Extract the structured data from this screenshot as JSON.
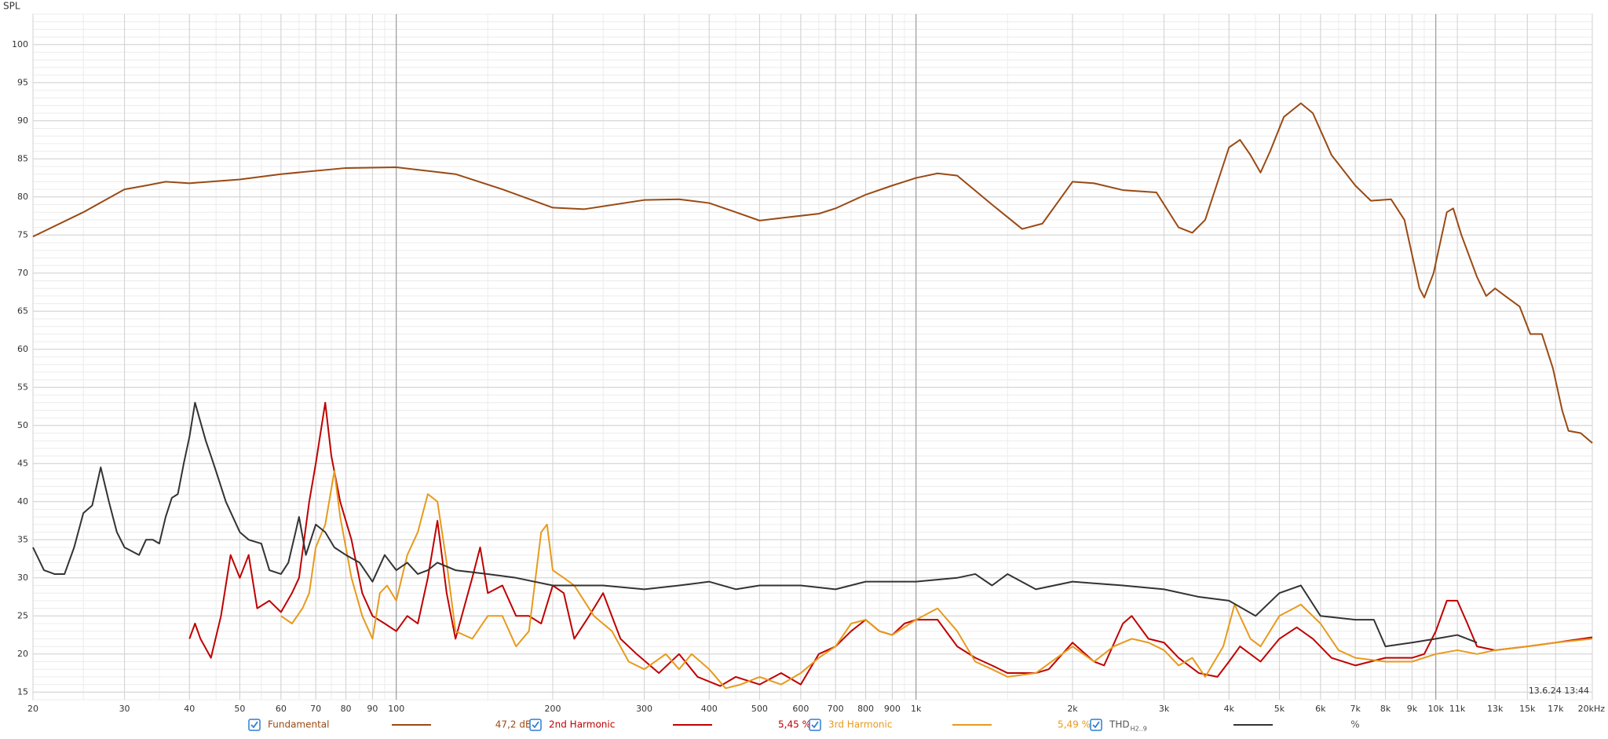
{
  "chart_data": {
    "type": "line",
    "y_label": "SPL",
    "timestamp": "13.6.24 13:44",
    "log_x": true,
    "grid": true,
    "xlim": [
      20,
      20000
    ],
    "ylim": [
      14,
      104
    ],
    "yticks": [
      15,
      20,
      25,
      30,
      35,
      40,
      45,
      50,
      55,
      60,
      65,
      70,
      75,
      80,
      85,
      90,
      95,
      100
    ],
    "xticks": [
      20,
      30,
      40,
      50,
      60,
      70,
      80,
      90,
      100,
      200,
      300,
      400,
      500,
      600,
      700,
      800,
      900,
      {
        "value": 1000,
        "label": "1k"
      },
      {
        "value": 2000,
        "label": "2k"
      },
      {
        "value": 3000,
        "label": "3k"
      },
      {
        "value": 4000,
        "label": "4k"
      },
      {
        "value": 5000,
        "label": "5k"
      },
      {
        "value": 6000,
        "label": "6k"
      },
      {
        "value": 7000,
        "label": "7k"
      },
      {
        "value": 8000,
        "label": "8k"
      },
      {
        "value": 9000,
        "label": "9k"
      },
      {
        "value": 10000,
        "label": "10k"
      },
      {
        "value": 11000,
        "label": "11k"
      },
      {
        "value": 13000,
        "label": "13k"
      },
      {
        "value": 15000,
        "label": "15k"
      },
      {
        "value": 17000,
        "label": "17k"
      },
      {
        "value": 20000,
        "label": "20kHz"
      }
    ],
    "series": [
      {
        "name": "Fundamental",
        "color": "#9a4a14",
        "readout": "47,2 dB",
        "x": [
          20,
          25,
          30,
          33,
          36,
          40,
          50,
          60,
          80,
          100,
          130,
          160,
          200,
          230,
          300,
          350,
          400,
          450,
          500,
          560,
          650,
          700,
          800,
          900,
          1000,
          1100,
          1200,
          1400,
          1600,
          1750,
          2000,
          2200,
          2500,
          2900,
          3200,
          3400,
          3600,
          4000,
          4200,
          4400,
          4600,
          4800,
          5100,
          5500,
          5800,
          6300,
          7000,
          7500,
          8200,
          8700,
          9300,
          9500,
          9900,
          10500,
          10800,
          11200,
          12000,
          12500,
          13000,
          13600,
          14500,
          15200,
          16000,
          16800,
          17500,
          18000,
          19000,
          20000
        ],
        "values": [
          74.8,
          78,
          81,
          81.5,
          82,
          81.8,
          82.3,
          83,
          83.8,
          83.9,
          83,
          81,
          78.6,
          78.4,
          79.6,
          79.7,
          79.2,
          78,
          76.9,
          77.3,
          77.8,
          78.5,
          80.3,
          81.5,
          82.5,
          83.1,
          82.8,
          79,
          75.8,
          76.5,
          82,
          81.8,
          80.9,
          80.6,
          76,
          75.3,
          77,
          86.5,
          87.5,
          85.5,
          83.2,
          86,
          90.5,
          92.3,
          91,
          85.5,
          81.5,
          79.5,
          79.7,
          77,
          68,
          66.8,
          70,
          78,
          78.5,
          75,
          69.5,
          67,
          68,
          67,
          65.6,
          62,
          62,
          57.5,
          52,
          49.3,
          49,
          47.7
        ]
      },
      {
        "name": "2nd Harmonic",
        "color": "#c00000",
        "readout": "5,45 %",
        "x": [
          40,
          41,
          42,
          44,
          46,
          48,
          50,
          52,
          54,
          57,
          60,
          63,
          65,
          68,
          70,
          73,
          75,
          78,
          82,
          86,
          90,
          95,
          100,
          105,
          110,
          115,
          120,
          125,
          130,
          140,
          145,
          150,
          160,
          170,
          180,
          190,
          200,
          210,
          220,
          235,
          250,
          270,
          290,
          320,
          350,
          380,
          420,
          450,
          500,
          550,
          600,
          650,
          700,
          750,
          800,
          850,
          900,
          950,
          1000,
          1100,
          1200,
          1300,
          1400,
          1500,
          1700,
          1800,
          2000,
          2200,
          2300,
          2500,
          2600,
          2800,
          3000,
          3200,
          3500,
          3800,
          4000,
          4200,
          4600,
          5000,
          5400,
          5800,
          6300,
          7000,
          8000,
          9000,
          9500,
          10000,
          10500,
          11000,
          11500,
          12000,
          13000,
          15000,
          17000,
          20000
        ],
        "values": [
          22,
          24,
          22,
          19.5,
          25,
          33,
          30,
          33,
          26,
          27,
          25.5,
          28,
          30,
          40,
          45,
          53,
          46,
          40,
          35,
          28,
          25,
          24,
          23,
          25,
          24,
          30,
          37.5,
          28,
          22,
          30,
          34,
          28,
          29,
          25,
          25,
          24,
          29,
          28,
          22,
          25,
          28,
          22,
          20,
          17.5,
          20,
          17,
          15.8,
          17,
          16,
          17.5,
          16,
          20,
          21,
          23,
          24.5,
          23,
          22.5,
          24,
          24.5,
          24.5,
          21,
          19.5,
          18.5,
          17.5,
          17.5,
          18,
          21.5,
          19,
          18.5,
          24,
          25,
          22,
          21.5,
          19.5,
          17.5,
          17,
          19,
          21,
          19,
          22,
          23.5,
          22,
          19.5,
          18.5,
          19.5,
          19.5,
          20,
          23,
          27,
          27,
          24,
          21,
          20.5,
          21,
          21.5,
          22.2
        ]
      },
      {
        "name": "3rd Harmonic",
        "color": "#e89a1c",
        "readout": "5,49 %",
        "x": [
          60,
          63,
          66,
          68,
          70,
          73,
          76,
          78,
          82,
          86,
          90,
          93,
          96,
          100,
          105,
          110,
          115,
          120,
          125,
          130,
          140,
          150,
          160,
          170,
          180,
          190,
          195,
          200,
          210,
          220,
          240,
          260,
          280,
          300,
          330,
          350,
          370,
          400,
          430,
          460,
          500,
          550,
          600,
          650,
          700,
          750,
          800,
          850,
          900,
          1000,
          1100,
          1200,
          1300,
          1400,
          1500,
          1700,
          2000,
          2200,
          2400,
          2600,
          2800,
          3000,
          3200,
          3400,
          3600,
          3900,
          4100,
          4400,
          4600,
          5000,
          5500,
          6000,
          6500,
          7000,
          8000,
          9000,
          10000,
          11000,
          12000,
          13000,
          15000,
          17000,
          20000
        ],
        "values": [
          25,
          24,
          26,
          28,
          34,
          37,
          44,
          38,
          30,
          25,
          22,
          28,
          29,
          27,
          33,
          36,
          41,
          40,
          32,
          23,
          22,
          25,
          25,
          21,
          23,
          36,
          37,
          31,
          30,
          29,
          25,
          23,
          19,
          18,
          20,
          18,
          20,
          18,
          15.5,
          16,
          17,
          16,
          17.5,
          19.5,
          21,
          24,
          24.5,
          23,
          22.5,
          24.5,
          26,
          23,
          19,
          18,
          17,
          17.5,
          21,
          19,
          21,
          22,
          21.5,
          20.5,
          18.5,
          19.5,
          17,
          21,
          26.5,
          22,
          21,
          25,
          26.5,
          24,
          20.5,
          19.5,
          19,
          19,
          20,
          20.5,
          20,
          20.5,
          21,
          21.5,
          22
        ]
      },
      {
        "name": "THD",
        "name_sub": "H2..9",
        "color": "#333333",
        "readout": "%",
        "x": [
          20,
          21,
          22,
          23,
          24,
          25,
          26,
          27,
          28,
          29,
          30,
          32,
          33,
          34,
          35,
          36,
          37,
          38,
          39,
          40,
          41,
          43,
          44,
          45,
          47,
          50,
          52,
          55,
          57,
          60,
          62,
          64,
          65,
          67,
          70,
          73,
          76,
          80,
          85,
          90,
          95,
          100,
          105,
          110,
          115,
          120,
          130,
          150,
          170,
          200,
          250,
          300,
          350,
          400,
          450,
          500,
          600,
          700,
          800,
          1000,
          1200,
          1300,
          1400,
          1500,
          1700,
          2000,
          2500,
          3000,
          3500,
          4000,
          4500,
          5000,
          5500,
          6000,
          7000,
          7600,
          8000,
          9000,
          10000,
          11000,
          12000
        ],
        "values": [
          34,
          31,
          30.5,
          30.5,
          34,
          38.5,
          39.5,
          44.5,
          40,
          36,
          34,
          33,
          35,
          35,
          34.5,
          38,
          40.5,
          41,
          45,
          48.5,
          53,
          48,
          46,
          44,
          40,
          36,
          35,
          34.5,
          31,
          30.5,
          32,
          36,
          38,
          33,
          37,
          36,
          34,
          33,
          32,
          29.5,
          33,
          31,
          32,
          30.5,
          31,
          32,
          31,
          30.5,
          30,
          29,
          29,
          28.5,
          29,
          29.5,
          28.5,
          29,
          29,
          28.5,
          29.5,
          29.5,
          30,
          30.5,
          29,
          30.5,
          28.5,
          29.5,
          29,
          28.5,
          27.5,
          27,
          25,
          28,
          29,
          25,
          24.5,
          24.5,
          21,
          21.5,
          22,
          22.5,
          21.5
        ]
      }
    ]
  }
}
